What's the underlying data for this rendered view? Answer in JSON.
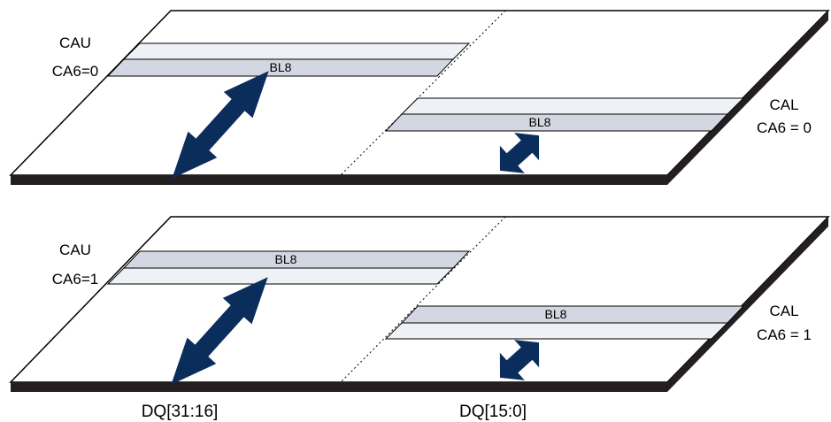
{
  "colors": {
    "plate_fill": "#ffffff",
    "plate_stroke": "#000000",
    "edge": "#231f20",
    "arrow": "#0b2d5c",
    "stripe_active": "#d3d7e2",
    "stripe_idle": "#eef1f6"
  },
  "top": {
    "cau_line1": "CAU",
    "cau_line2": "CA6=0",
    "cal_line1": "CAL",
    "cal_line2": "CA6 = 0",
    "upper_burst": "BL8",
    "lower_burst": "BL8"
  },
  "bottom": {
    "cau_line1": "CAU",
    "cau_line2": "CA6=1",
    "cal_line1": "CAL",
    "cal_line2": "CA6 = 1",
    "upper_burst": "BL8",
    "lower_burst": "BL8"
  },
  "footer": {
    "dq_upper": "DQ[31:16]",
    "dq_lower": "DQ[15:0]"
  }
}
